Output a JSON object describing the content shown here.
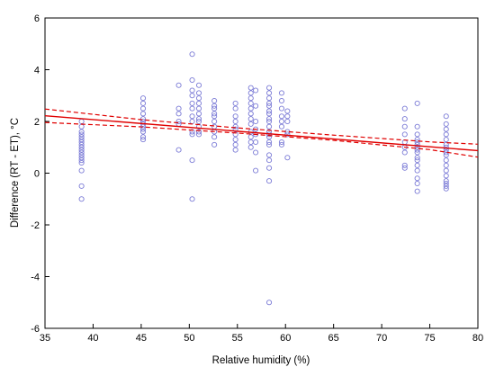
{
  "chart_data": {
    "type": "scatter",
    "title": "",
    "xlabel": "Relative humidity (%)",
    "ylabel": "Difference (RT - ET), °C",
    "xlim": [
      35,
      80
    ],
    "ylim": [
      -6,
      6
    ],
    "xticks": [
      35,
      40,
      45,
      50,
      55,
      60,
      65,
      70,
      75,
      80
    ],
    "yticks": [
      -6,
      -4,
      -2,
      0,
      2,
      4,
      6
    ],
    "grid": false,
    "legend": "none",
    "colors": {
      "points": "#7b7bd6",
      "fit": "#e00000",
      "ci": "#e00000",
      "frame": "#000000"
    },
    "series": [
      {
        "kind": "points",
        "x": [
          38.8,
          38.8,
          38.8,
          38.8,
          38.8,
          38.8,
          38.8,
          38.8,
          38.8,
          38.8,
          38.8,
          38.8,
          38.8,
          38.8,
          38.8,
          38.8,
          38.8,
          38.8,
          45.2,
          45.2,
          45.2,
          45.2,
          45.2,
          45.2,
          45.2,
          45.2,
          45.2,
          45.2,
          45.2,
          45.2,
          48.9,
          48.9,
          48.9,
          48.9,
          48.9,
          48.9,
          50.3,
          50.3,
          50.3,
          50.3,
          50.3,
          50.3,
          50.3,
          50.3,
          50.3,
          50.3,
          50.3,
          50.3,
          51.0,
          51.0,
          51.0,
          51.0,
          51.0,
          51.0,
          51.0,
          51.0,
          51.0,
          51.0,
          51.0,
          52.6,
          52.6,
          52.6,
          52.6,
          52.6,
          52.6,
          52.6,
          52.6,
          52.6,
          52.6,
          54.8,
          54.8,
          54.8,
          54.8,
          54.8,
          54.8,
          54.8,
          54.8,
          54.8,
          54.8,
          56.4,
          56.4,
          56.4,
          56.4,
          56.4,
          56.4,
          56.4,
          56.4,
          56.4,
          56.4,
          56.4,
          56.4,
          56.9,
          56.9,
          56.9,
          56.9,
          56.9,
          56.9,
          56.9,
          56.9,
          58.3,
          58.3,
          58.3,
          58.3,
          58.3,
          58.3,
          58.3,
          58.3,
          58.3,
          58.3,
          58.3,
          58.3,
          58.3,
          58.3,
          58.3,
          58.3,
          58.3,
          58.3,
          58.3,
          58.3,
          59.6,
          59.6,
          59.6,
          59.6,
          59.6,
          59.6,
          59.6,
          59.6,
          60.2,
          60.2,
          60.2,
          60.2,
          60.2,
          60.2,
          72.4,
          72.4,
          72.4,
          72.4,
          72.4,
          72.4,
          72.4,
          72.4,
          72.4,
          73.7,
          73.7,
          73.7,
          73.7,
          73.7,
          73.7,
          73.7,
          73.7,
          73.7,
          73.7,
          73.7,
          73.7,
          73.7,
          73.7,
          73.7,
          73.7,
          76.7,
          76.7,
          76.7,
          76.7,
          76.7,
          76.7,
          76.7,
          76.7,
          76.7,
          76.7,
          76.7,
          76.7,
          76.7,
          76.7,
          76.7,
          76.7,
          76.7,
          76.7
        ],
        "y": [
          2.0,
          1.8,
          1.6,
          1.4,
          1.3,
          1.2,
          1.1,
          1.0,
          0.9,
          0.8,
          0.7,
          0.6,
          0.5,
          0.4,
          0.1,
          -0.5,
          -1.0,
          1.5,
          2.9,
          2.7,
          2.5,
          2.3,
          2.1,
          2.0,
          1.9,
          1.8,
          1.7,
          1.6,
          1.4,
          1.3,
          3.4,
          2.5,
          2.3,
          2.0,
          1.9,
          0.9,
          4.6,
          3.6,
          3.2,
          3.0,
          2.7,
          2.5,
          2.2,
          2.0,
          1.6,
          1.5,
          0.5,
          -1.0,
          3.4,
          3.1,
          2.9,
          2.7,
          2.5,
          2.3,
          2.1,
          2.0,
          1.8,
          1.6,
          1.5,
          2.8,
          2.6,
          2.5,
          2.3,
          2.2,
          2.0,
          1.8,
          1.6,
          1.4,
          1.1,
          2.7,
          2.5,
          2.2,
          2.0,
          1.8,
          1.7,
          1.5,
          1.3,
          1.1,
          0.9,
          3.3,
          3.1,
          2.9,
          2.7,
          2.5,
          2.3,
          2.1,
          1.9,
          1.6,
          1.4,
          1.2,
          1.0,
          3.2,
          2.6,
          2.0,
          1.7,
          1.5,
          1.2,
          0.8,
          0.1,
          3.3,
          3.1,
          2.9,
          2.7,
          2.6,
          2.4,
          2.3,
          2.1,
          2.0,
          1.8,
          1.6,
          1.5,
          1.4,
          1.2,
          1.1,
          0.7,
          0.5,
          0.2,
          -0.3,
          -5.0,
          3.1,
          2.8,
          2.5,
          2.2,
          2.0,
          1.8,
          1.2,
          1.1,
          2.4,
          2.2,
          2.0,
          1.6,
          1.5,
          0.6,
          2.5,
          2.1,
          1.8,
          1.5,
          1.2,
          1.0,
          0.8,
          0.3,
          0.2,
          2.7,
          1.8,
          1.5,
          1.3,
          1.2,
          1.1,
          1.0,
          0.9,
          0.8,
          0.6,
          0.5,
          0.3,
          0.1,
          -0.2,
          -0.4,
          -0.7,
          2.2,
          1.9,
          1.7,
          1.5,
          1.3,
          1.1,
          1.0,
          0.9,
          0.8,
          0.7,
          0.5,
          0.3,
          0.1,
          -0.1,
          -0.3,
          -0.4,
          -0.5,
          -0.6
        ]
      },
      {
        "kind": "fit",
        "x": [
          35,
          80
        ],
        "y": [
          2.22,
          0.87
        ]
      },
      {
        "kind": "ci_upper",
        "x": [
          35,
          45,
          55,
          65,
          75,
          80
        ],
        "y": [
          2.48,
          2.07,
          1.75,
          1.47,
          1.21,
          1.12
        ]
      },
      {
        "kind": "ci_lower",
        "x": [
          35,
          45,
          55,
          65,
          75,
          80
        ],
        "y": [
          1.96,
          1.79,
          1.55,
          1.27,
          0.91,
          0.62
        ]
      }
    ]
  }
}
